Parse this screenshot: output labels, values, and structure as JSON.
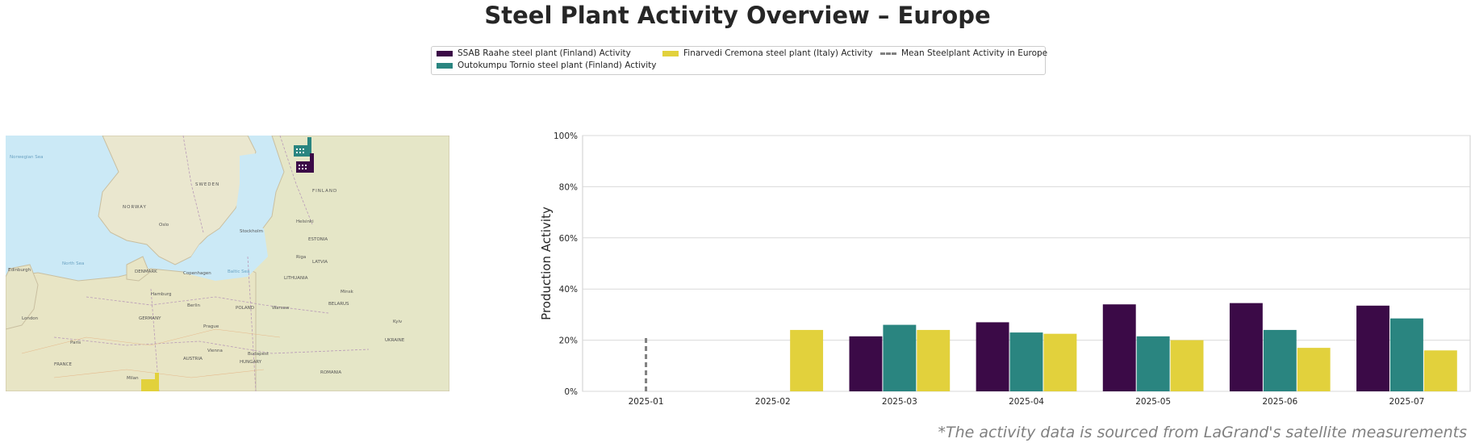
{
  "title": "Steel Plant Activity Overview – Europe",
  "source_note": "*The activity data is sourced from LaGrand's satellite measurements",
  "legend": {
    "items": [
      {
        "label": "SSAB Raahe steel plant (Finland) Activity",
        "color": "#3b0a47"
      },
      {
        "label": "Outokumpu Tornio steel plant (Finland) Activity",
        "color": "#2a8580"
      },
      {
        "label": "Finarvedi Cremona steel plant (Italy) Activity",
        "color": "#e2d13c"
      },
      {
        "label": "Mean Steelplant Activity in Europe",
        "color": "#808080"
      }
    ]
  },
  "map": {
    "labels": [
      {
        "text": "Norwegian Sea"
      },
      {
        "text": "SWEDEN"
      },
      {
        "text": "FINLAND"
      },
      {
        "text": "NORWAY"
      },
      {
        "text": "North Sea"
      },
      {
        "text": "DENMARK"
      },
      {
        "text": "Baltic Sea"
      },
      {
        "text": "ESTONIA"
      },
      {
        "text": "LATVIA"
      },
      {
        "text": "LITHUANIA"
      },
      {
        "text": "BELARUS"
      },
      {
        "text": "POLAND"
      },
      {
        "text": "GERMANY"
      },
      {
        "text": "UKRAINE"
      },
      {
        "text": "FRANCE"
      },
      {
        "text": "AUSTRIA"
      },
      {
        "text": "HUNGARY"
      },
      {
        "text": "ROMANIA"
      },
      {
        "text": "Stockholm"
      },
      {
        "text": "Helsinki"
      },
      {
        "text": "Oslo"
      },
      {
        "text": "Riga"
      },
      {
        "text": "Minsk"
      },
      {
        "text": "Warsaw"
      },
      {
        "text": "Berlin"
      },
      {
        "text": "Paris"
      },
      {
        "text": "London"
      },
      {
        "text": "Prague"
      },
      {
        "text": "Vienna"
      },
      {
        "text": "Kyiv"
      },
      {
        "text": "Copenhagen"
      },
      {
        "text": "Hamburg"
      },
      {
        "text": "Budapest"
      },
      {
        "text": "Milan"
      },
      {
        "text": "Edinburgh"
      }
    ],
    "markers": [
      {
        "name": "Outokumpu Tornio",
        "color": "#2a8580"
      },
      {
        "name": "SSAB Raahe",
        "color": "#3b0a47"
      },
      {
        "name": "Finarvedi Cremona",
        "color": "#e2d13c"
      }
    ]
  },
  "chart_data": {
    "type": "bar",
    "categories": [
      "2025-01",
      "2025-02",
      "2025-03",
      "2025-04",
      "2025-05",
      "2025-06",
      "2025-07"
    ],
    "series": [
      {
        "name": "SSAB Raahe steel plant (Finland) Activity",
        "color": "#3b0a47",
        "values": [
          null,
          null,
          21.5,
          27,
          34,
          34.5,
          33.5
        ]
      },
      {
        "name": "Outokumpu Tornio steel plant (Finland) Activity",
        "color": "#2a8580",
        "values": [
          null,
          null,
          26,
          23,
          21.5,
          24,
          28.5
        ]
      },
      {
        "name": "Finarvedi Cremona steel plant (Italy) Activity",
        "color": "#e2d13c",
        "values": [
          null,
          24,
          24,
          22.5,
          20,
          17,
          16
        ]
      }
    ],
    "mean_line": {
      "name": "Mean Steelplant Activity in Europe",
      "category": "2025-01",
      "value": 21
    },
    "ylabel": "Production Activity",
    "xlabel": "",
    "ylim": [
      0,
      100
    ],
    "yticks": [
      "0%",
      "20%",
      "40%",
      "60%",
      "80%",
      "100%"
    ],
    "grid": true,
    "legend_position": "top-center"
  }
}
